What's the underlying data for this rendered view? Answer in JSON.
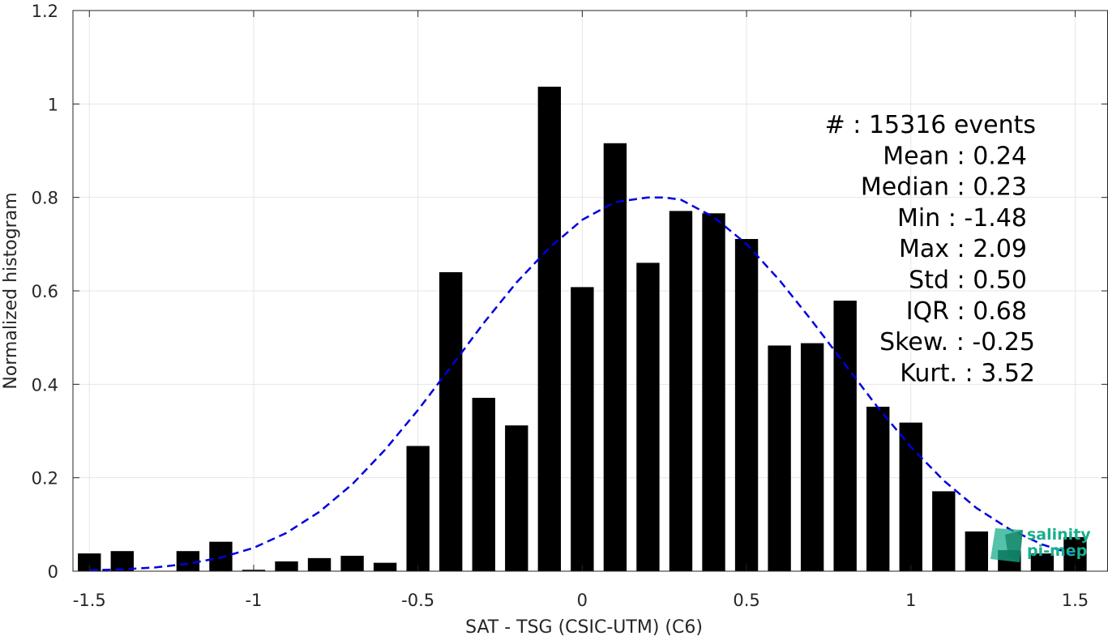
{
  "chart_data": {
    "type": "bar",
    "title": "",
    "xlabel": "SAT - TSG (CSIC-UTM) (C6)",
    "ylabel": "Normalized histogram",
    "xlim": [
      -1.55,
      1.6
    ],
    "ylim": [
      0,
      1.2
    ],
    "xticks": [
      -1.5,
      -1,
      -0.5,
      0,
      0.5,
      1,
      1.5
    ],
    "xtick_labels": [
      "-1.5",
      "-1",
      "-0.5",
      "0",
      "0.5",
      "1",
      "1.5"
    ],
    "yticks": [
      0,
      0.2,
      0.4,
      0.6,
      0.8,
      1,
      1.2
    ],
    "ytick_labels": [
      "0",
      "0.2",
      "0.4",
      "0.6",
      "0.8",
      "1",
      "1.2"
    ],
    "grid": true,
    "bar_color": "#000000",
    "bar_width": 0.07,
    "bins": [
      -1.5,
      -1.4,
      -1.3,
      -1.2,
      -1.1,
      -1.0,
      -0.9,
      -0.8,
      -0.7,
      -0.6,
      -0.5,
      -0.4,
      -0.3,
      -0.2,
      -0.1,
      0.0,
      0.1,
      0.2,
      0.3,
      0.4,
      0.5,
      0.6,
      0.7,
      0.8,
      0.9,
      1.0,
      1.1,
      1.2,
      1.3,
      1.4,
      1.5
    ],
    "values": [
      0.038,
      0.043,
      0,
      0.043,
      0.063,
      0.003,
      0.021,
      0.028,
      0.033,
      0.018,
      0.268,
      0.64,
      0.371,
      0.312,
      1.037,
      0.608,
      0.916,
      0.66,
      0.771,
      0.766,
      0.711,
      0.483,
      0.488,
      0.579,
      0.352,
      0.318,
      0.171,
      0.085,
      0.045,
      0.038,
      0.073
    ],
    "fit_curve": {
      "type": "gaussian",
      "style": "dashed",
      "color": "#0000e0",
      "x": [
        -1.5,
        -1.4,
        -1.3,
        -1.2,
        -1.1,
        -1.0,
        -0.9,
        -0.8,
        -0.7,
        -0.6,
        -0.5,
        -0.4,
        -0.3,
        -0.2,
        -0.1,
        0.0,
        0.1,
        0.2,
        0.25,
        0.3,
        0.4,
        0.5,
        0.6,
        0.7,
        0.8,
        0.9,
        1.0,
        1.1,
        1.2,
        1.3,
        1.4,
        1.5
      ],
      "y": [
        0.002,
        0.004,
        0.008,
        0.016,
        0.029,
        0.05,
        0.082,
        0.127,
        0.186,
        0.26,
        0.345,
        0.437,
        0.531,
        0.618,
        0.692,
        0.752,
        0.79,
        0.8,
        0.8,
        0.795,
        0.758,
        0.7,
        0.623,
        0.535,
        0.442,
        0.35,
        0.266,
        0.194,
        0.135,
        0.09,
        0.057,
        0.035
      ]
    },
    "stats": [
      {
        "label": "#  : 15316 events"
      },
      {
        "label": "Mean : 0.24"
      },
      {
        "label": "Median : 0.23"
      },
      {
        "label": "Min : -1.48"
      },
      {
        "label": "Max : 2.09"
      },
      {
        "label": "Std : 0.50"
      },
      {
        "label": "IQR : 0.68"
      },
      {
        "label": "Skew. : -0.25"
      },
      {
        "label": "Kurt. : 3.52"
      }
    ]
  },
  "logo": {
    "line1": "salinity",
    "line2": "pi-mep",
    "color": "#1aae8c"
  }
}
